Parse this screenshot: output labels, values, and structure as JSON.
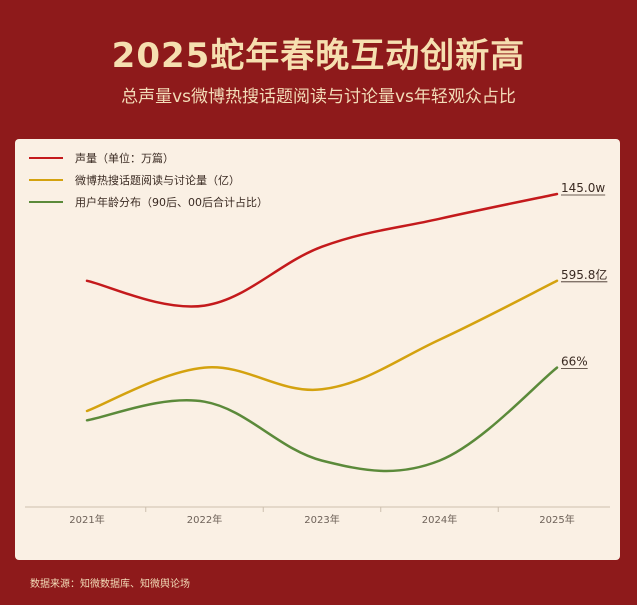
{
  "header": {
    "title": "2025蛇年春晚互动创新高",
    "subtitle": "总声量vs微博热搜话题阅读与讨论量vs年轻观众占比"
  },
  "footer": {
    "source": "数据来源：知微数据库、知微舆论场"
  },
  "colors": {
    "background": "#8e1a1b",
    "card": "#faf0e4",
    "series": [
      "#c41a1c",
      "#d4a20f",
      "#5b8a3a"
    ]
  },
  "chart_data": {
    "type": "line",
    "title": "2025蛇年春晚互动创新高",
    "subtitle": "总声量vs微博热搜话题阅读与讨论量vs年轻观众占比",
    "categories": [
      "2021年",
      "2022年",
      "2023年",
      "2024年",
      "2025年"
    ],
    "legend_position": "top-left",
    "grid": false,
    "series": [
      {
        "name": "声量（单位：万篇）",
        "color": "#c41a1c",
        "values": [
          null,
          null,
          null,
          null,
          145.0
        ],
        "end_label": "145.0w"
      },
      {
        "name": "微博热搜话题阅读与讨论量（亿）",
        "color": "#d4a20f",
        "values": [
          null,
          null,
          null,
          null,
          595.8
        ],
        "end_label": "595.8亿"
      },
      {
        "name": "用户年龄分布（90后、00后合计占比）",
        "color": "#5b8a3a",
        "values": [
          null,
          null,
          null,
          null,
          66
        ],
        "end_label": "66%"
      }
    ],
    "normalized_shape": [
      [
        0.72,
        0.64,
        0.83,
        0.92,
        1.0
      ],
      [
        0.3,
        0.44,
        0.37,
        0.53,
        0.72
      ],
      [
        0.27,
        0.33,
        0.14,
        0.14,
        0.44
      ]
    ]
  }
}
